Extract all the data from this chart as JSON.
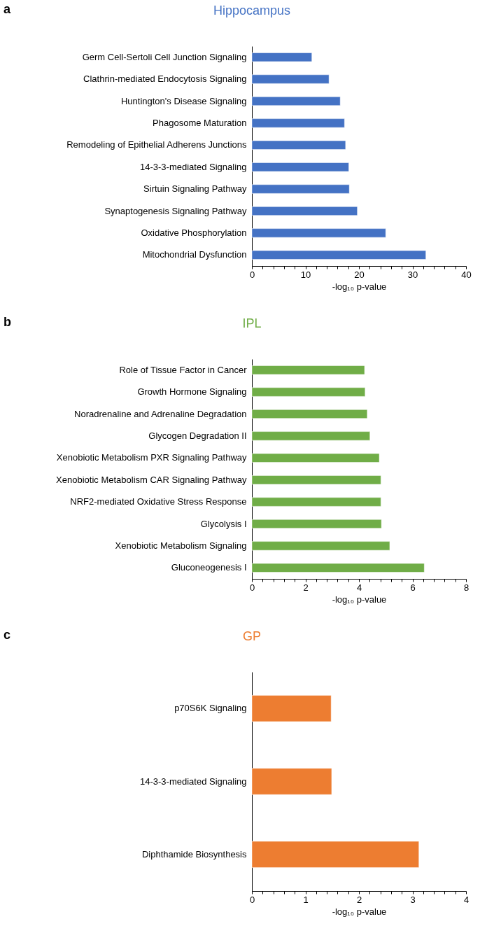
{
  "chart_data": [
    {
      "type": "bar",
      "orientation": "horizontal",
      "title": "Hippocampus",
      "xlabel": "-log₁₀ p-value",
      "annotations": [
        "a"
      ],
      "categories": [
        "Germ Cell-Sertoli Cell Junction Signaling",
        "Clathrin-mediated Endocytosis Signaling",
        "Huntington's Disease Signaling",
        "Phagosome Maturation",
        "Remodeling of Epithelial Adherens Junctions",
        "14-3-3-mediated Signaling",
        "Sirtuin Signaling Pathway",
        "Synaptogenesis Signaling Pathway",
        "Oxidative Phosphorylation",
        "Mitochondrial Dysfunction"
      ],
      "values": [
        11.2,
        14.4,
        16.5,
        17.3,
        17.5,
        18.1,
        18.2,
        19.7,
        25.0,
        32.5
      ],
      "color": "#4472c4",
      "xlim": [
        0,
        40
      ],
      "xticks": [
        0,
        {
          "value": 2,
          "label": null
        },
        {
          "value": 4,
          "label": null
        },
        {
          "value": 6,
          "label": null
        },
        {
          "value": 8,
          "label": null
        },
        10,
        {
          "value": 12,
          "label": null
        },
        {
          "value": 14,
          "label": null
        },
        {
          "value": 16,
          "label": null
        },
        {
          "value": 18,
          "label": null
        },
        20,
        {
          "value": 22,
          "label": null
        },
        {
          "value": 24,
          "label": null
        },
        {
          "value": 26,
          "label": null
        },
        {
          "value": 28,
          "label": null
        },
        30,
        {
          "value": 32,
          "label": null
        },
        {
          "value": 34,
          "label": null
        },
        {
          "value": 36,
          "label": null
        },
        {
          "value": 38,
          "label": null
        },
        40
      ],
      "grid": false
    },
    {
      "type": "bar",
      "orientation": "horizontal",
      "title": "IPL",
      "xlabel": "-log₁₀ p-value",
      "annotations": [
        "b"
      ],
      "categories": [
        "Role of Tissue Factor in Cancer",
        "Growth Hormone Signaling",
        "Noradrenaline and Adrenaline Degradation",
        "Glycogen Degradation II",
        "Xenobiotic Metabolism PXR Signaling Pathway",
        "Xenobiotic Metabolism CAR Signaling Pathway",
        "NRF2-mediated Oxidative Stress Response",
        "Glycolysis I",
        "Xenobiotic Metabolism Signaling",
        "Gluconeogenesis I"
      ],
      "values": [
        4.21,
        4.23,
        4.31,
        4.41,
        4.76,
        4.82,
        4.82,
        4.84,
        5.15,
        6.44
      ],
      "color": "#70ad47",
      "xlim": [
        0,
        8
      ],
      "xticks": [
        0,
        {
          "value": 0.4,
          "label": null
        },
        {
          "value": 0.8,
          "label": null
        },
        {
          "value": 1.2,
          "label": null
        },
        {
          "value": 1.6,
          "label": null
        },
        2,
        {
          "value": 2.4,
          "label": null
        },
        {
          "value": 2.8,
          "label": null
        },
        {
          "value": 3.2,
          "label": null
        },
        {
          "value": 3.6,
          "label": null
        },
        4,
        {
          "value": 4.4,
          "label": null
        },
        {
          "value": 4.8,
          "label": null
        },
        {
          "value": 5.2,
          "label": null
        },
        {
          "value": 5.6,
          "label": null
        },
        6,
        {
          "value": 6.4,
          "label": null
        },
        {
          "value": 6.8,
          "label": null
        },
        {
          "value": 7.2,
          "label": null
        },
        {
          "value": 7.6,
          "label": null
        },
        8
      ],
      "grid": false
    },
    {
      "type": "bar",
      "orientation": "horizontal",
      "title": "GP",
      "xlabel": "-log₁₀ p-value",
      "annotations": [
        "c"
      ],
      "categories": [
        "p70S6K Signaling",
        "14-3-3-mediated Signaling",
        "Diphthamide Biosynthesis"
      ],
      "values": [
        1.48,
        1.49,
        3.12
      ],
      "color": "#ed7d31",
      "xlim": [
        0,
        4
      ],
      "xticks": [
        0,
        {
          "value": 0.2,
          "label": null
        },
        {
          "value": 0.4,
          "label": null
        },
        {
          "value": 0.6,
          "label": null
        },
        {
          "value": 0.8,
          "label": null
        },
        1,
        {
          "value": 1.2,
          "label": null
        },
        {
          "value": 1.4,
          "label": null
        },
        {
          "value": 1.6,
          "label": null
        },
        {
          "value": 1.8,
          "label": null
        },
        2,
        {
          "value": 2.2,
          "label": null
        },
        {
          "value": 2.4,
          "label": null
        },
        {
          "value": 2.6,
          "label": null
        },
        {
          "value": 2.8,
          "label": null
        },
        3,
        {
          "value": 3.2,
          "label": null
        },
        {
          "value": 3.4,
          "label": null
        },
        {
          "value": 3.6,
          "label": null
        },
        {
          "value": 3.8,
          "label": null
        },
        4
      ],
      "grid": false
    }
  ]
}
